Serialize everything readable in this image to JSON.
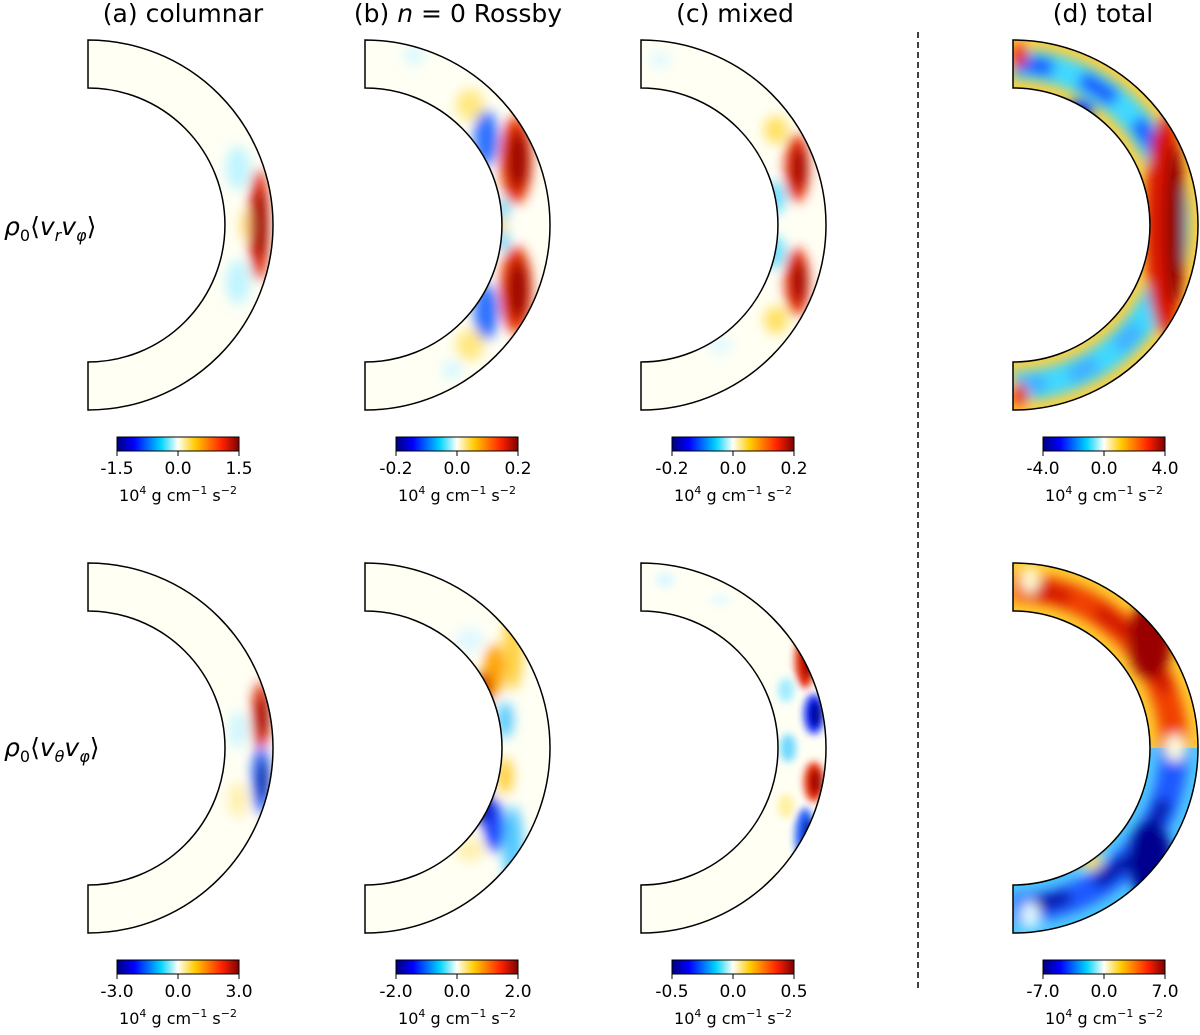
{
  "columns": [
    {
      "id": "a",
      "title": "(a) columnar"
    },
    {
      "id": "b",
      "title_prefix": "(b) ",
      "title_var": "n",
      "title_suffix": " = 0 Rossby"
    },
    {
      "id": "c",
      "title": "(c) mixed"
    },
    {
      "id": "d",
      "title": "(d) total"
    }
  ],
  "rows": [
    {
      "id": "rphi",
      "label_rho": "ρ",
      "label_sub0": "0",
      "label_open": "⟨",
      "v1": "v",
      "v1_sub": "r",
      "v2": "v",
      "v2_sub": "φ",
      "label_close": "⟩"
    },
    {
      "id": "thphi",
      "label_rho": "ρ",
      "label_sub0": "0",
      "label_open": "⟨",
      "v1": "v",
      "v1_sub": "θ",
      "v2": "v",
      "v2_sub": "φ",
      "label_close": "⟩"
    }
  ],
  "colorbars": [
    {
      "panel": "r1a",
      "min_label": "-1.5",
      "mid_label": "0.0",
      "max_label": "1.5",
      "vmax": 1.5
    },
    {
      "panel": "r1b",
      "min_label": "-0.2",
      "mid_label": "0.0",
      "max_label": "0.2",
      "vmax": 0.2
    },
    {
      "panel": "r1c",
      "min_label": "-0.2",
      "mid_label": "0.0",
      "max_label": "0.2",
      "vmax": 0.2
    },
    {
      "panel": "r1d",
      "min_label": "-4.0",
      "mid_label": "0.0",
      "max_label": "4.0",
      "vmax": 4.0
    },
    {
      "panel": "r2a",
      "min_label": "-3.0",
      "mid_label": "0.0",
      "max_label": "3.0",
      "vmax": 3.0
    },
    {
      "panel": "r2b",
      "min_label": "-2.0",
      "mid_label": "0.0",
      "max_label": "2.0",
      "vmax": 2.0
    },
    {
      "panel": "r2c",
      "min_label": "-0.5",
      "mid_label": "0.0",
      "max_label": "0.5",
      "vmax": 0.5
    },
    {
      "panel": "r2d",
      "min_label": "-7.0",
      "mid_label": "0.0",
      "max_label": "7.0",
      "vmax": 7.0
    }
  ],
  "unit_label": {
    "base": "10",
    "exp1": "4",
    "g": "g cm",
    "exp2": "−1",
    "s": "s",
    "exp3": "−2"
  },
  "colormap": [
    "#00007f",
    "#0000ff",
    "#00d4ff",
    "#fffff8",
    "#ffcc00",
    "#ff2200",
    "#7f0000"
  ]
}
